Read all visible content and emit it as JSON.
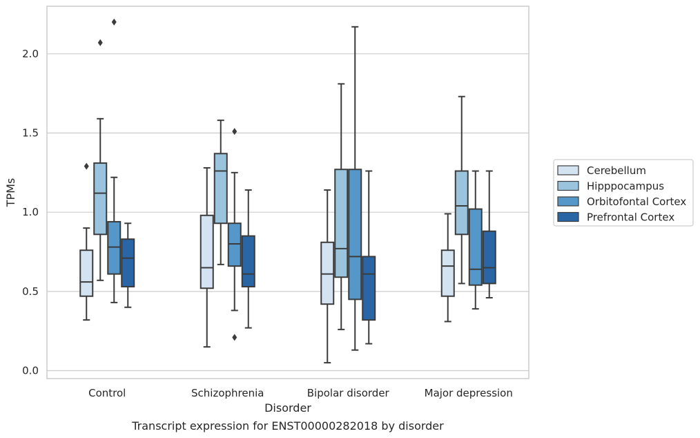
{
  "chart_data": {
    "type": "box",
    "xlabel": "Disorder",
    "ylabel": "TPMs",
    "caption": "Transcript expression for ENST00000282018 by disorder",
    "ylim": [
      -0.05,
      2.3
    ],
    "yticks": [
      "0.0",
      "0.5",
      "1.0",
      "1.5",
      "2.0"
    ],
    "grid": true,
    "legend_position": "right",
    "categories": [
      "Control",
      "Schizophrenia",
      "Bipolar disorder",
      "Major depression"
    ],
    "series": [
      {
        "name": "Cerebellum",
        "color": "#d4e3f2",
        "boxes": [
          {
            "whislo": 0.32,
            "q1": 0.47,
            "med": 0.56,
            "q3": 0.76,
            "whishi": 0.9,
            "fliers": [
              1.29
            ]
          },
          {
            "whislo": 0.15,
            "q1": 0.52,
            "med": 0.65,
            "q3": 0.98,
            "whishi": 1.28,
            "fliers": []
          },
          {
            "whislo": 0.05,
            "q1": 0.42,
            "med": 0.61,
            "q3": 0.81,
            "whishi": 1.14,
            "fliers": []
          },
          {
            "whislo": 0.31,
            "q1": 0.47,
            "med": 0.66,
            "q3": 0.76,
            "whishi": 0.99,
            "fliers": []
          }
        ]
      },
      {
        "name": "Hipppocampus",
        "color": "#9ac4de",
        "boxes": [
          {
            "whislo": 0.57,
            "q1": 0.86,
            "med": 1.12,
            "q3": 1.31,
            "whishi": 1.59,
            "fliers": [
              2.07
            ]
          },
          {
            "whislo": 0.67,
            "q1": 0.93,
            "med": 1.26,
            "q3": 1.37,
            "whishi": 1.58,
            "fliers": []
          },
          {
            "whislo": 0.26,
            "q1": 0.59,
            "med": 0.77,
            "q3": 1.27,
            "whishi": 1.81,
            "fliers": []
          },
          {
            "whislo": 0.55,
            "q1": 0.86,
            "med": 1.04,
            "q3": 1.26,
            "whishi": 1.73,
            "fliers": []
          }
        ]
      },
      {
        "name": "Orbitofontal Cortex",
        "color": "#5597c8",
        "boxes": [
          {
            "whislo": 0.43,
            "q1": 0.61,
            "med": 0.78,
            "q3": 0.94,
            "whishi": 1.22,
            "fliers": [
              2.2
            ]
          },
          {
            "whislo": 0.38,
            "q1": 0.66,
            "med": 0.8,
            "q3": 0.93,
            "whishi": 1.25,
            "fliers": [
              1.51,
              0.21
            ]
          },
          {
            "whislo": 0.13,
            "q1": 0.45,
            "med": 0.72,
            "q3": 1.27,
            "whishi": 2.17,
            "fliers": []
          },
          {
            "whislo": 0.39,
            "q1": 0.54,
            "med": 0.64,
            "q3": 1.02,
            "whishi": 1.26,
            "fliers": []
          }
        ]
      },
      {
        "name": "Prefrontal Cortex",
        "color": "#2a65a6",
        "boxes": [
          {
            "whislo": 0.4,
            "q1": 0.53,
            "med": 0.71,
            "q3": 0.83,
            "whishi": 0.93,
            "fliers": []
          },
          {
            "whislo": 0.27,
            "q1": 0.53,
            "med": 0.61,
            "q3": 0.85,
            "whishi": 1.14,
            "fliers": []
          },
          {
            "whislo": 0.17,
            "q1": 0.32,
            "med": 0.61,
            "q3": 0.72,
            "whishi": 1.26,
            "fliers": []
          },
          {
            "whislo": 0.46,
            "q1": 0.55,
            "med": 0.65,
            "q3": 0.88,
            "whishi": 1.26,
            "fliers": []
          }
        ]
      }
    ]
  }
}
